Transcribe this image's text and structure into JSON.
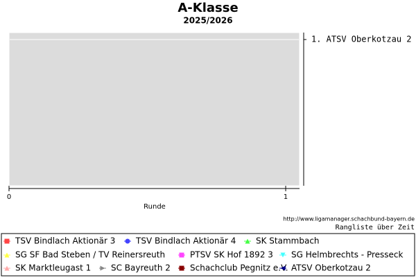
{
  "chart_data": {
    "type": "line",
    "title": "A-Klasse",
    "subtitle": "2025/2026",
    "x_label": "Runde",
    "source": "http://www.ligamanager.schachbund-bayern.de",
    "footer": "Rangliste über Zeit",
    "x": [],
    "xlim": [
      0,
      1.05
    ],
    "xticks": [
      0,
      1
    ],
    "y2lim": [
      0.9,
      3.1
    ],
    "y2_inverted": true,
    "y2ticks": [
      {
        "value": 1,
        "label": "1. ATSV Oberkotzau 2"
      }
    ],
    "grid": true,
    "series": [
      {
        "name": "TSV Bindlach Aktionär 3",
        "color": "#ff4444",
        "marker": "square",
        "values": []
      },
      {
        "name": "TSV Bindlach Aktionär 4",
        "color": "#4444ff",
        "marker": "circle",
        "values": []
      },
      {
        "name": "SK Stammbach",
        "color": "#44ff44",
        "marker": "triangle-up",
        "values": []
      },
      {
        "name": "SG SF Bad Steben / TV Reinersreuth",
        "color": "#ffff44",
        "marker": "triangle-up",
        "values": []
      },
      {
        "name": "PTSV SK Hof 1892 3",
        "color": "#ff44ff",
        "marker": "square",
        "values": []
      },
      {
        "name": "SG Helmbrechts - Presseck",
        "color": "#44ffff",
        "marker": "triangle-down",
        "values": []
      },
      {
        "name": "SK Marktleugast 1",
        "color": "#ffaaaa",
        "marker": "triangle-up",
        "values": []
      },
      {
        "name": "SC Bayreuth 2",
        "color": "#888888",
        "marker": "triangle-right",
        "values": []
      },
      {
        "name": "Schachclub Pegnitz e.V.",
        "color": "#880000",
        "marker": "square",
        "values": []
      },
      {
        "name": "ATSV Oberkotzau 2",
        "color": "#000088",
        "marker": "triangle-left",
        "values": []
      }
    ]
  }
}
